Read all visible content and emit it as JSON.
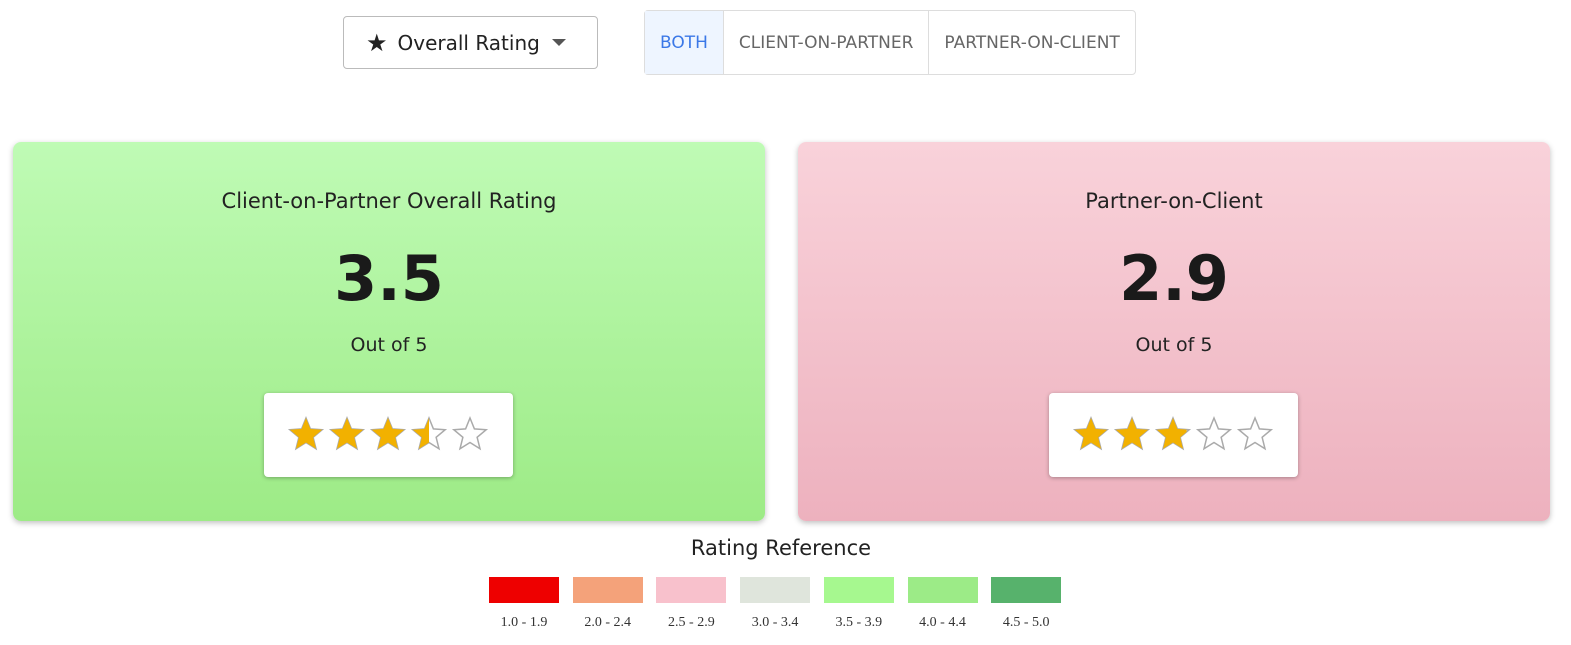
{
  "dropdown": {
    "label": "Overall Rating"
  },
  "tabs": [
    {
      "label": "BOTH",
      "selected": true
    },
    {
      "label": "CLIENT-ON-PARTNER",
      "selected": false
    },
    {
      "label": "PARTNER-ON-CLIENT",
      "selected": false
    }
  ],
  "cards": [
    {
      "title": "Client-on-Partner Overall Rating",
      "rating": 3.5,
      "subtitle": "Out of 5",
      "colors": [
        "#bffbb5",
        "#9deb86"
      ]
    },
    {
      "title": "Partner-on-Client",
      "rating": 2.9,
      "subtitle": "Out of 5",
      "colors": [
        "#f9d2da",
        "#edb1be"
      ]
    }
  ],
  "legend": {
    "title": "Rating Reference",
    "items": [
      {
        "label": "1.0 - 1.9",
        "color": "#ee0000"
      },
      {
        "label": "2.0 - 2.4",
        "color": "#f4a27a"
      },
      {
        "label": "2.5 - 2.9",
        "color": "#f8c1cc"
      },
      {
        "label": "3.0 - 3.4",
        "color": "#dfe5dc"
      },
      {
        "label": "3.5 - 3.9",
        "color": "#a6f88f"
      },
      {
        "label": "4.0 - 4.4",
        "color": "#9ceb87"
      },
      {
        "label": "4.5 - 5.0",
        "color": "#57b26c"
      }
    ]
  }
}
